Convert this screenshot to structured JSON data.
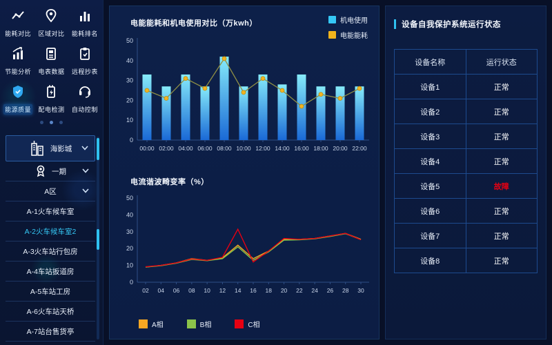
{
  "colors": {
    "accent": "#2fc1f0",
    "bar_top": "#86ebfa",
    "bar_bottom": "#1a69d6",
    "energy_line": "#8f8f45",
    "energy_dot": "#f2b422",
    "legend_mech": "#35c8f5",
    "legend_energy": "#f0b31c",
    "phase_a": "#f5a623",
    "phase_b": "#8bc34a",
    "phase_c": "#e60012",
    "normal_text": "#ffffff",
    "fault_text": "#e60012",
    "axis": "#2e4f86",
    "tick_label": "#c9d5e8"
  },
  "sidebar": {
    "menu": [
      {
        "label": "能耗对比",
        "icon": "trend-icon",
        "active": false
      },
      {
        "label": "区域对比",
        "icon": "location-icon",
        "active": false
      },
      {
        "label": "能耗排名",
        "icon": "bar-ranking-icon",
        "active": false
      },
      {
        "label": "节能分析",
        "icon": "analysis-icon",
        "active": false
      },
      {
        "label": "电表数据",
        "icon": "meter-icon",
        "active": false
      },
      {
        "label": "远程抄表",
        "icon": "clipboard-icon",
        "active": false
      },
      {
        "label": "能源质量",
        "icon": "shield-icon",
        "active": true
      },
      {
        "label": "配电检测",
        "icon": "battery-icon",
        "active": false
      },
      {
        "label": "自动控制",
        "icon": "control-icon",
        "active": false
      }
    ],
    "pagination": {
      "count": 3,
      "active_index": 1
    },
    "tree": [
      {
        "label": "海影城",
        "icon": "building-icon",
        "expandable": true,
        "root": true,
        "active": false
      },
      {
        "label": "一期",
        "icon": "medal-icon",
        "expandable": true,
        "root": false,
        "active": false
      },
      {
        "label": "A区",
        "icon": "",
        "expandable": true,
        "root": false,
        "active": false
      },
      {
        "label": "A-1火车候车室",
        "icon": "",
        "expandable": false,
        "root": false,
        "active": false
      },
      {
        "label": "A-2火车候车室2",
        "icon": "",
        "expandable": false,
        "root": false,
        "active": true
      },
      {
        "label": "A-3火车站行包房",
        "icon": "",
        "expandable": false,
        "root": false,
        "active": false
      },
      {
        "label": "A-4车站扳道房",
        "icon": "",
        "expandable": false,
        "root": false,
        "active": false
      },
      {
        "label": "A-5车站工房",
        "icon": "",
        "expandable": false,
        "root": false,
        "active": false
      },
      {
        "label": "A-6火车站天桥",
        "icon": "",
        "expandable": false,
        "root": false,
        "active": false
      },
      {
        "label": "A-7站台售货亭",
        "icon": "",
        "expandable": false,
        "root": false,
        "active": false
      }
    ]
  },
  "chart_data": [
    {
      "type": "bar",
      "title": "电能能耗和机电使用对比（万kwh）",
      "categories": [
        "00:00",
        "02:00",
        "04:00",
        "06:00",
        "08:00",
        "10:00",
        "12:00",
        "14:00",
        "16:00",
        "18:00",
        "20:00",
        "22:00"
      ],
      "series": [
        {
          "name": "机电使用",
          "kind": "bar",
          "color": "#35c8f5",
          "values": [
            33,
            27,
            33,
            27,
            42,
            27,
            33,
            28,
            33,
            27,
            27,
            27
          ]
        },
        {
          "name": "电能能耗",
          "kind": "line",
          "color": "#f0b31c",
          "values": [
            25,
            21,
            31,
            26,
            41,
            24,
            31,
            25,
            17,
            23,
            21,
            26
          ]
        }
      ],
      "ylim": [
        0,
        50
      ],
      "yticks": [
        0,
        10,
        20,
        30,
        40,
        50
      ],
      "legend_position": "top-right",
      "grid": false
    },
    {
      "type": "line",
      "title": "电流谐波畸变率（%）",
      "categories": [
        "02",
        "04",
        "06",
        "08",
        "10",
        "12",
        "14",
        "16",
        "18",
        "20",
        "22",
        "24",
        "26",
        "28",
        "30"
      ],
      "series": [
        {
          "name": "A相",
          "kind": "line",
          "color": "#f5a623",
          "values": [
            9,
            10,
            11.5,
            14,
            13,
            14.5,
            22,
            14,
            18.5,
            25.5,
            25.5,
            26,
            27.5,
            29,
            25.5
          ]
        },
        {
          "name": "B相",
          "kind": "line",
          "color": "#8bc34a",
          "values": [
            9,
            9.8,
            11.3,
            13.5,
            12.8,
            14,
            21,
            13,
            18,
            25,
            25.2,
            25.8,
            27.2,
            28.8,
            25.3
          ]
        },
        {
          "name": "C相",
          "kind": "line",
          "color": "#e60012",
          "values": [
            9.2,
            10,
            11.5,
            13.8,
            13,
            14.8,
            31.5,
            12,
            18.5,
            26,
            25.5,
            26,
            27.5,
            29,
            25.2
          ]
        }
      ],
      "ylim": [
        0,
        50
      ],
      "yticks": [
        0,
        10,
        20,
        30,
        40,
        50
      ],
      "legend_position": "bottom",
      "grid": false
    }
  ],
  "device_panel": {
    "title": "设备自我保护系统运行状态",
    "table": {
      "headers": [
        "设备名称",
        "运行状态"
      ],
      "rows": [
        {
          "name": "设备1",
          "status": "正常",
          "state": "normal"
        },
        {
          "name": "设备2",
          "status": "正常",
          "state": "normal"
        },
        {
          "name": "设备3",
          "status": "正常",
          "state": "normal"
        },
        {
          "name": "设备4",
          "status": "正常",
          "state": "normal"
        },
        {
          "name": "设备5",
          "status": "故障",
          "state": "fault"
        },
        {
          "name": "设备6",
          "status": "正常",
          "state": "normal"
        },
        {
          "name": "设备7",
          "status": "正常",
          "state": "normal"
        },
        {
          "name": "设备8",
          "status": "正常",
          "state": "normal"
        }
      ]
    }
  }
}
